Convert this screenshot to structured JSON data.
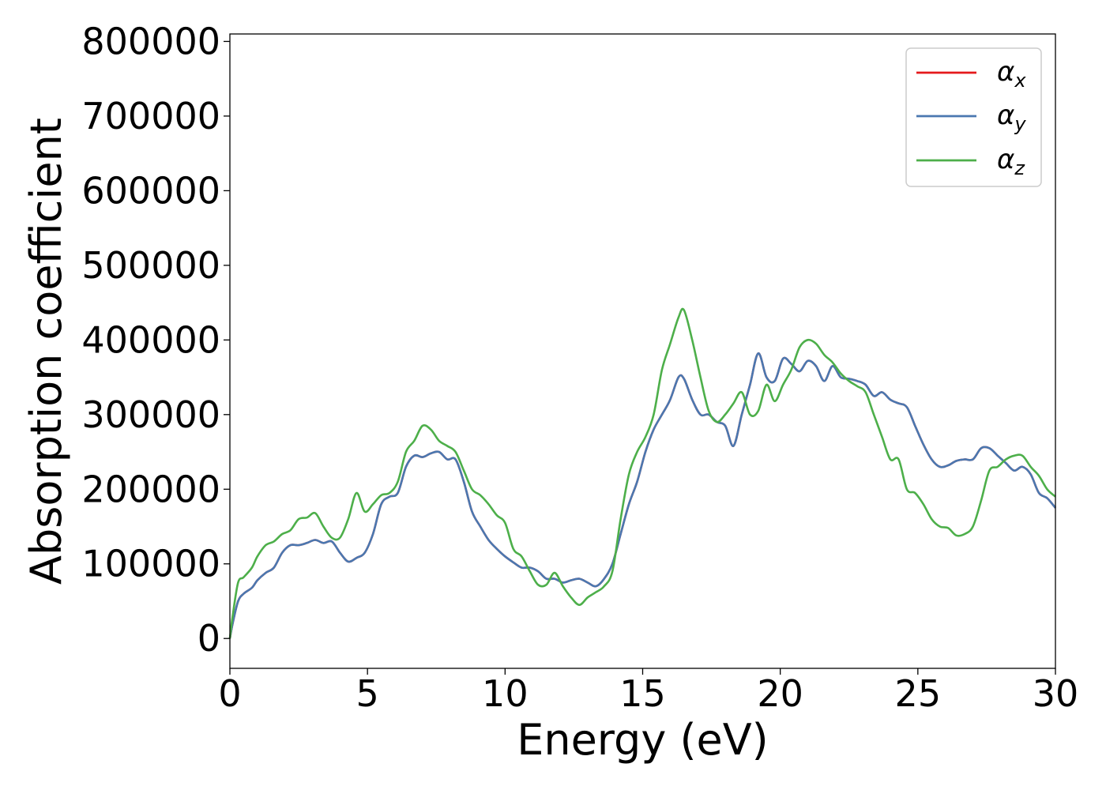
{
  "chart_data": {
    "type": "line",
    "title": "",
    "xlabel": "Energy (eV)",
    "ylabel": "Absorption coefficient",
    "xlim": [
      0,
      30
    ],
    "ylim": [
      -40000,
      810000
    ],
    "xticks": [
      0,
      5,
      10,
      15,
      20,
      25,
      30
    ],
    "xtick_labels": [
      "0",
      "5",
      "10",
      "15",
      "20",
      "25",
      "30"
    ],
    "yticks": [
      0,
      100000,
      200000,
      300000,
      400000,
      500000,
      600000,
      700000,
      800000
    ],
    "ytick_labels": [
      "0",
      "100000",
      "200000",
      "300000",
      "400000",
      "500000",
      "600000",
      "700000",
      "800000"
    ],
    "grid": false,
    "legend_position": "top-right",
    "colors": {
      "alpha_x": "#e41a1c",
      "alpha_y": "#4a78b0",
      "alpha_z": "#4daf4a"
    },
    "series": [
      {
        "name": "α_x",
        "legend_base": "α",
        "legend_sub": "x",
        "x": [
          0,
          0.1,
          0.3,
          0.5,
          0.8,
          1.0,
          1.3,
          1.6,
          1.9,
          2.2,
          2.5,
          2.8,
          3.1,
          3.4,
          3.7,
          4.0,
          4.3,
          4.6,
          4.9,
          5.2,
          5.5,
          5.8,
          6.1,
          6.4,
          6.7,
          7.0,
          7.3,
          7.6,
          7.9,
          8.2,
          8.5,
          8.8,
          9.1,
          9.4,
          9.7,
          10.0,
          10.3,
          10.6,
          10.9,
          11.2,
          11.5,
          11.8,
          12.1,
          12.4,
          12.7,
          13.0,
          13.3,
          13.6,
          13.9,
          14.2,
          14.5,
          14.8,
          15.1,
          15.4,
          15.7,
          16.0,
          16.3,
          16.5,
          16.8,
          17.1,
          17.4,
          17.7,
          18.0,
          18.3,
          18.6,
          18.9,
          19.2,
          19.5,
          19.8,
          20.1,
          20.4,
          20.7,
          21.0,
          21.3,
          21.6,
          21.9,
          22.2,
          22.5,
          22.8,
          23.1,
          23.4,
          23.7,
          24.0,
          24.3,
          24.6,
          24.9,
          25.2,
          25.5,
          25.8,
          26.1,
          26.4,
          26.7,
          27.0,
          27.3,
          27.6,
          27.9,
          28.2,
          28.5,
          28.8,
          29.1,
          29.4,
          29.7,
          30.0
        ],
        "values": [
          0,
          20000,
          50000,
          60000,
          68000,
          78000,
          88000,
          95000,
          115000,
          125000,
          125000,
          128000,
          132000,
          128000,
          130000,
          115000,
          103000,
          108000,
          115000,
          140000,
          180000,
          190000,
          195000,
          230000,
          245000,
          243000,
          248000,
          250000,
          240000,
          240000,
          210000,
          170000,
          150000,
          132000,
          120000,
          110000,
          102000,
          95000,
          95000,
          90000,
          80000,
          80000,
          75000,
          78000,
          80000,
          75000,
          70000,
          80000,
          100000,
          140000,
          180000,
          210000,
          250000,
          280000,
          300000,
          320000,
          350000,
          348000,
          320000,
          300000,
          300000,
          290000,
          285000,
          258000,
          300000,
          340000,
          382000,
          350000,
          345000,
          375000,
          368000,
          358000,
          372000,
          365000,
          345000,
          365000,
          350000,
          348000,
          345000,
          340000,
          325000,
          330000,
          320000,
          315000,
          310000,
          285000,
          260000,
          240000,
          230000,
          232000,
          238000,
          240000,
          240000,
          255000,
          255000,
          245000,
          235000,
          225000,
          230000,
          220000,
          195000,
          188000,
          175000
        ]
      },
      {
        "name": "α_y",
        "legend_base": "α",
        "legend_sub": "y",
        "x": [
          0,
          0.1,
          0.3,
          0.5,
          0.8,
          1.0,
          1.3,
          1.6,
          1.9,
          2.2,
          2.5,
          2.8,
          3.1,
          3.4,
          3.7,
          4.0,
          4.3,
          4.6,
          4.9,
          5.2,
          5.5,
          5.8,
          6.1,
          6.4,
          6.7,
          7.0,
          7.3,
          7.6,
          7.9,
          8.2,
          8.5,
          8.8,
          9.1,
          9.4,
          9.7,
          10.0,
          10.3,
          10.6,
          10.9,
          11.2,
          11.5,
          11.8,
          12.1,
          12.4,
          12.7,
          13.0,
          13.3,
          13.6,
          13.9,
          14.2,
          14.5,
          14.8,
          15.1,
          15.4,
          15.7,
          16.0,
          16.3,
          16.5,
          16.8,
          17.1,
          17.4,
          17.7,
          18.0,
          18.3,
          18.6,
          18.9,
          19.2,
          19.5,
          19.8,
          20.1,
          20.4,
          20.7,
          21.0,
          21.3,
          21.6,
          21.9,
          22.2,
          22.5,
          22.8,
          23.1,
          23.4,
          23.7,
          24.0,
          24.3,
          24.6,
          24.9,
          25.2,
          25.5,
          25.8,
          26.1,
          26.4,
          26.7,
          27.0,
          27.3,
          27.6,
          27.9,
          28.2,
          28.5,
          28.8,
          29.1,
          29.4,
          29.7,
          30.0
        ],
        "values": [
          0,
          20000,
          50000,
          60000,
          68000,
          78000,
          88000,
          95000,
          115000,
          125000,
          125000,
          128000,
          132000,
          128000,
          130000,
          115000,
          103000,
          108000,
          115000,
          140000,
          180000,
          190000,
          195000,
          230000,
          245000,
          243000,
          248000,
          250000,
          240000,
          240000,
          210000,
          170000,
          150000,
          132000,
          120000,
          110000,
          102000,
          95000,
          95000,
          90000,
          80000,
          80000,
          75000,
          78000,
          80000,
          75000,
          70000,
          80000,
          100000,
          140000,
          180000,
          210000,
          250000,
          280000,
          300000,
          320000,
          350000,
          348000,
          320000,
          300000,
          300000,
          290000,
          285000,
          258000,
          300000,
          340000,
          382000,
          350000,
          345000,
          375000,
          368000,
          358000,
          372000,
          365000,
          345000,
          365000,
          350000,
          348000,
          345000,
          340000,
          325000,
          330000,
          320000,
          315000,
          310000,
          285000,
          260000,
          240000,
          230000,
          232000,
          238000,
          240000,
          240000,
          255000,
          255000,
          245000,
          235000,
          225000,
          230000,
          220000,
          195000,
          188000,
          175000
        ]
      },
      {
        "name": "α_z",
        "legend_base": "α",
        "legend_sub": "z",
        "x": [
          0,
          0.1,
          0.3,
          0.5,
          0.8,
          1.0,
          1.3,
          1.6,
          1.9,
          2.2,
          2.5,
          2.8,
          3.1,
          3.4,
          3.7,
          4.0,
          4.3,
          4.6,
          4.9,
          5.2,
          5.5,
          5.8,
          6.1,
          6.4,
          6.7,
          7.0,
          7.3,
          7.6,
          7.9,
          8.2,
          8.5,
          8.8,
          9.1,
          9.4,
          9.7,
          10.0,
          10.3,
          10.6,
          10.9,
          11.2,
          11.5,
          11.8,
          12.1,
          12.4,
          12.7,
          13.0,
          13.3,
          13.6,
          13.9,
          14.2,
          14.5,
          14.8,
          15.1,
          15.4,
          15.7,
          16.0,
          16.3,
          16.5,
          16.8,
          17.1,
          17.4,
          17.7,
          18.0,
          18.3,
          18.6,
          18.9,
          19.2,
          19.5,
          19.8,
          20.1,
          20.4,
          20.7,
          21.0,
          21.3,
          21.6,
          21.9,
          22.2,
          22.5,
          22.8,
          23.1,
          23.4,
          23.7,
          24.0,
          24.3,
          24.6,
          24.9,
          25.2,
          25.5,
          25.8,
          26.1,
          26.4,
          26.7,
          27.0,
          27.3,
          27.6,
          27.9,
          28.2,
          28.5,
          28.8,
          29.1,
          29.4,
          29.7,
          30.0
        ],
        "values": [
          0,
          30000,
          75000,
          82000,
          95000,
          110000,
          125000,
          130000,
          140000,
          145000,
          160000,
          162000,
          168000,
          150000,
          135000,
          135000,
          160000,
          195000,
          170000,
          180000,
          192000,
          195000,
          210000,
          250000,
          265000,
          285000,
          280000,
          265000,
          258000,
          250000,
          225000,
          200000,
          192000,
          180000,
          165000,
          155000,
          120000,
          110000,
          90000,
          72000,
          72000,
          88000,
          70000,
          55000,
          45000,
          55000,
          62000,
          70000,
          90000,
          160000,
          220000,
          250000,
          270000,
          300000,
          360000,
          395000,
          430000,
          440000,
          400000,
          350000,
          305000,
          290000,
          300000,
          315000,
          330000,
          300000,
          305000,
          340000,
          318000,
          340000,
          360000,
          390000,
          400000,
          395000,
          380000,
          370000,
          355000,
          345000,
          338000,
          330000,
          300000,
          270000,
          240000,
          240000,
          200000,
          195000,
          180000,
          160000,
          150000,
          148000,
          138000,
          140000,
          150000,
          185000,
          225000,
          230000,
          240000,
          245000,
          245000,
          230000,
          218000,
          200000,
          190000
        ]
      }
    ]
  }
}
